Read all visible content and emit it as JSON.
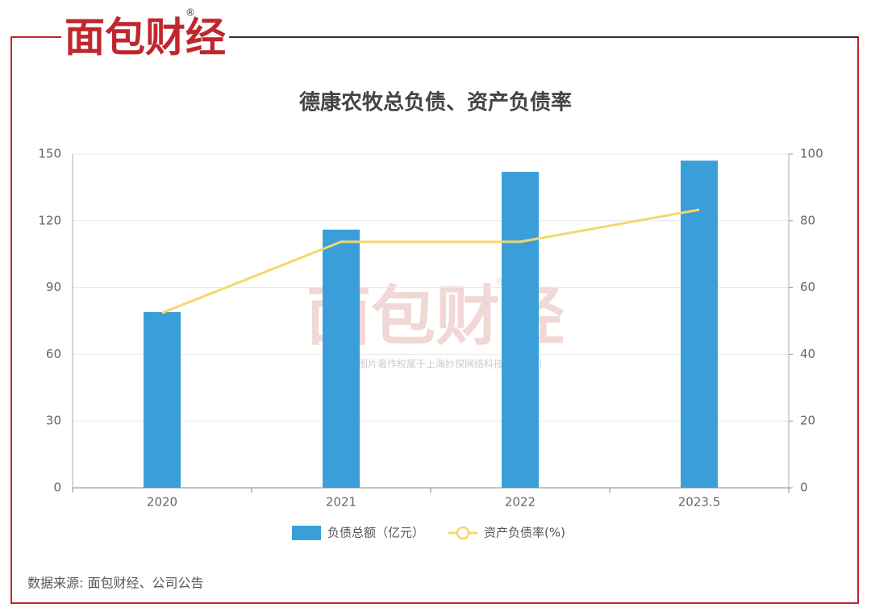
{
  "logo": "面包财经",
  "logo_mark": "®",
  "chart_data": {
    "type": "bar",
    "title": "德康农牧总负债、资产负债率",
    "categories": [
      "2020",
      "2021",
      "2022",
      "2023.5"
    ],
    "series": [
      {
        "name": "负债总额（亿元）",
        "type": "bar",
        "color": "#3a9fd8",
        "axis": "y",
        "values": [
          79,
          116,
          142,
          147
        ]
      },
      {
        "name": "资产负债率(%)",
        "type": "line",
        "color": "#f5d76e",
        "axis": "y2",
        "values": [
          52.4,
          73.7,
          73.7,
          83.3
        ]
      }
    ],
    "ylim": [
      0,
      150
    ],
    "yticks": [
      0,
      30,
      60,
      90,
      120,
      150
    ],
    "y2lim": [
      0,
      100
    ],
    "y2ticks": [
      0,
      20,
      40,
      60,
      80,
      100
    ],
    "grid": true,
    "legend": "bottom"
  },
  "watermark": {
    "logo": "面包财经",
    "mark": "®",
    "text": "本图表图片著作权属于上海妙探网络科技有限公司"
  },
  "source": "数据来源: 面包财经、公司公告"
}
